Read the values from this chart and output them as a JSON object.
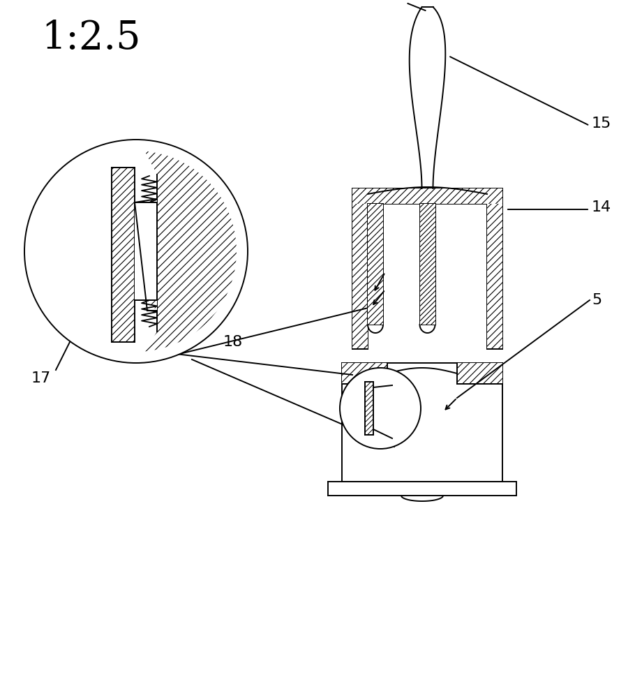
{
  "title": "1:2.5",
  "bg_color": "#ffffff",
  "line_color": "#000000",
  "label_17": "17",
  "label_18": "18",
  "label_14": "14",
  "label_15": "15",
  "label_5": "5",
  "figw": 9.1,
  "figh": 10.0,
  "dpi": 100
}
